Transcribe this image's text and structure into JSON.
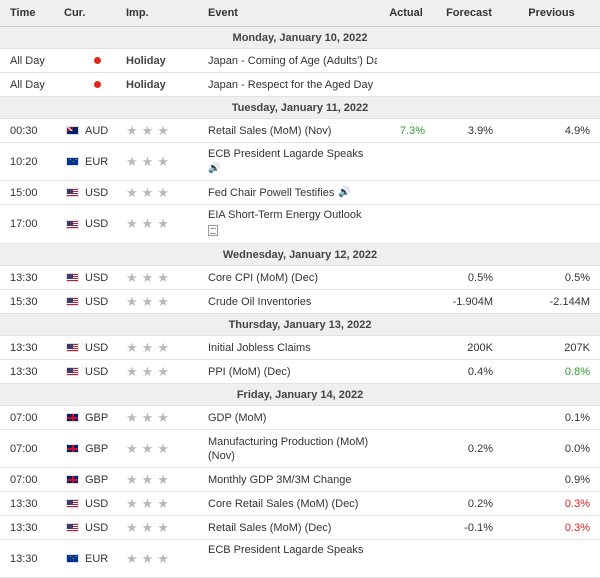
{
  "headers": {
    "time": "Time",
    "cur": "Cur.",
    "imp": "Imp.",
    "event": "Event",
    "actual": "Actual",
    "forecast": "Forecast",
    "previous": "Previous"
  },
  "days": [
    "Monday, January 10, 2022",
    "Tuesday, January 11, 2022",
    "Wednesday, January 12, 2022",
    "Thursday, January 13, 2022",
    "Friday, January 14, 2022"
  ],
  "rows": [
    {
      "time": "All Day",
      "cur": "",
      "flag": "jp",
      "imp": "Holiday",
      "event": "Japan - Coming of Age (Adults') Day",
      "actual": "",
      "forecast": "",
      "previous": ""
    },
    {
      "time": "All Day",
      "cur": "",
      "flag": "jp",
      "imp": "Holiday",
      "event": "Japan - Respect for the Aged Day",
      "actual": "",
      "forecast": "",
      "previous": ""
    },
    {
      "time": "00:30",
      "cur": "AUD",
      "flag": "au",
      "stars": "★★★",
      "event": "Retail Sales (MoM) (Nov)",
      "actual": "7.3%",
      "forecast": "3.9%",
      "previous": "4.9%"
    },
    {
      "time": "10:20",
      "cur": "EUR",
      "flag": "eu",
      "stars": "★★★",
      "event": "ECB President Lagarde Speaks",
      "icon": "speaker-icon",
      "actual": "",
      "forecast": "",
      "previous": ""
    },
    {
      "time": "15:00",
      "cur": "USD",
      "flag": "us",
      "stars": "★★★",
      "event": "Fed Chair Powell Testifies",
      "icon": "speaker-icon",
      "actual": "",
      "forecast": "",
      "previous": ""
    },
    {
      "time": "17:00",
      "cur": "USD",
      "flag": "us",
      "stars": "★★★",
      "event": "EIA Short-Term Energy Outlook",
      "icon": "document-icon",
      "actual": "",
      "forecast": "",
      "previous": ""
    },
    {
      "time": "13:30",
      "cur": "USD",
      "flag": "us",
      "stars": "★★★",
      "event": "Core CPI (MoM) (Dec)",
      "actual": "",
      "forecast": "0.5%",
      "previous": "0.5%"
    },
    {
      "time": "15:30",
      "cur": "USD",
      "flag": "us",
      "stars": "★★★",
      "event": "Crude Oil Inventories",
      "actual": "",
      "forecast": "-1.904M",
      "previous": "-2.144M"
    },
    {
      "time": "13:30",
      "cur": "USD",
      "flag": "us",
      "stars": "★★★",
      "event": "Initial Jobless Claims",
      "actual": "",
      "forecast": "200K",
      "previous": "207K"
    },
    {
      "time": "13:30",
      "cur": "USD",
      "flag": "us",
      "stars": "★★★",
      "event": "PPI (MoM) (Dec)",
      "actual": "",
      "forecast": "0.4%",
      "previous": "0.8%"
    },
    {
      "time": "07:00",
      "cur": "GBP",
      "flag": "gb",
      "stars": "★★★",
      "event": "GDP (MoM)",
      "actual": "",
      "forecast": "",
      "previous": "0.1%"
    },
    {
      "time": "07:00",
      "cur": "GBP",
      "flag": "gb",
      "stars": "★★★",
      "event": "Manufacturing Production (MoM) (Nov)",
      "actual": "",
      "forecast": "0.2%",
      "previous": "0.0%"
    },
    {
      "time": "07:00",
      "cur": "GBP",
      "flag": "gb",
      "stars": "★★★",
      "event": "Monthly GDP 3M/3M Change",
      "actual": "",
      "forecast": "",
      "previous": "0.9%"
    },
    {
      "time": "13:30",
      "cur": "USD",
      "flag": "us",
      "stars": "★★★",
      "event": "Core Retail Sales (MoM) (Dec)",
      "actual": "",
      "forecast": "0.2%",
      "previous": "0.3%"
    },
    {
      "time": "13:30",
      "cur": "USD",
      "flag": "us",
      "stars": "★★★",
      "event": "Retail Sales (MoM) (Dec)",
      "actual": "",
      "forecast": "-0.1%",
      "previous": "0.3%"
    },
    {
      "time": "13:30",
      "cur": "EUR",
      "flag": "eu",
      "stars": "★★★",
      "event": "ECB President Lagarde Speaks",
      "actual": "",
      "forecast": "",
      "previous": ""
    }
  ],
  "colors": {
    "positive": "#2d9d2d",
    "negative": "#e02020",
    "header_bg": "#f0f0f0",
    "day_bg": "#efefef"
  }
}
